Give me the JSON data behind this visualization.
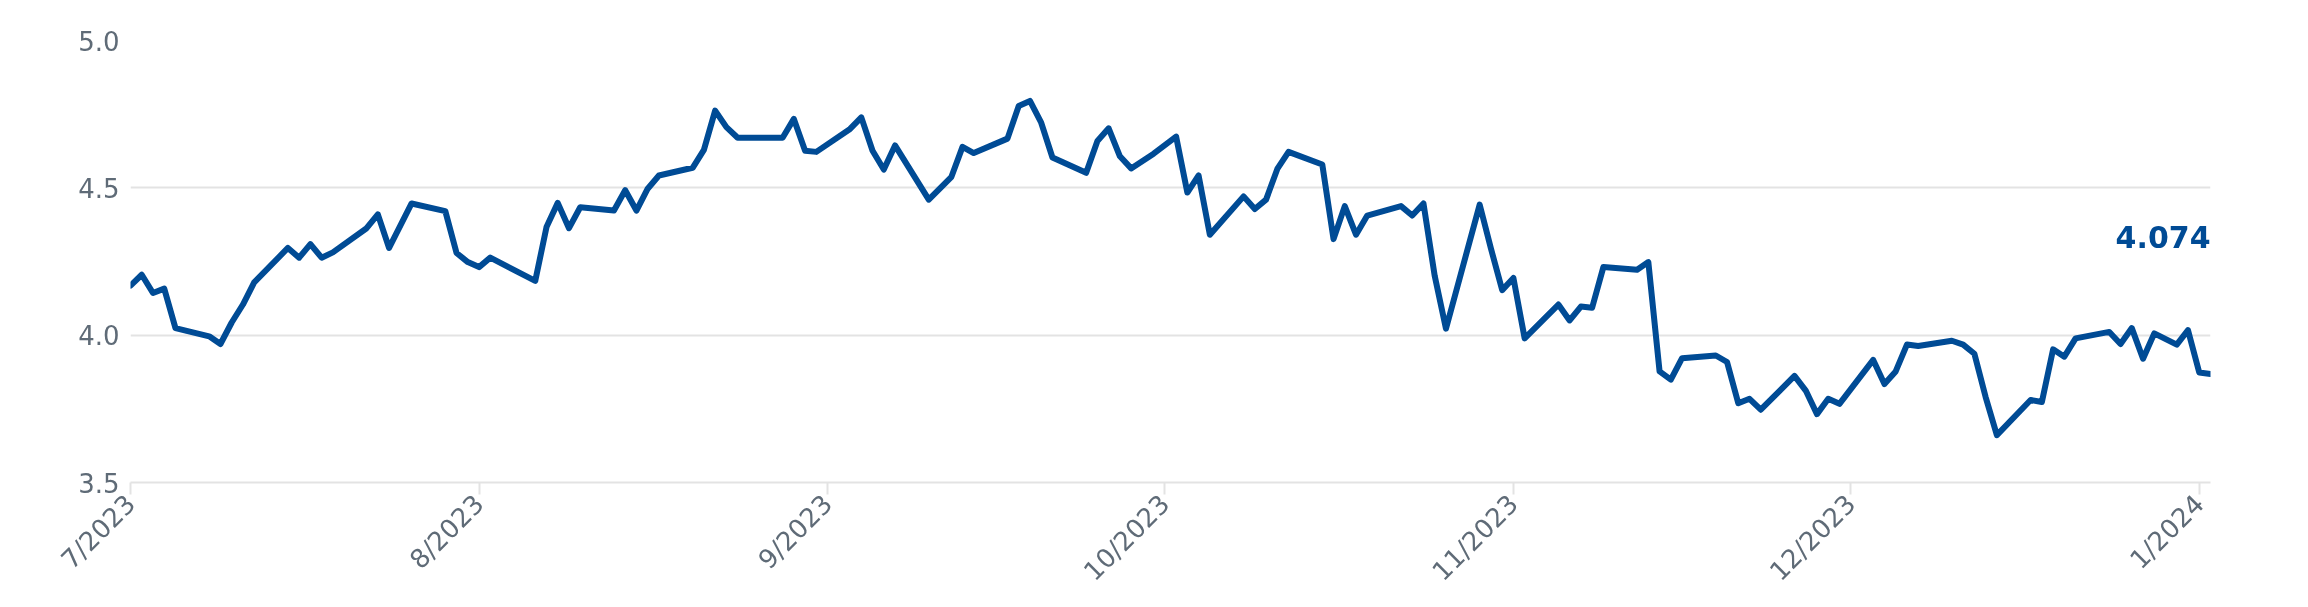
{
  "chart_data": {
    "type": "line",
    "x": [
      "2023-07-01",
      "2023-07-02",
      "2023-07-03",
      "2023-07-04",
      "2023-07-05",
      "2023-07-08",
      "2023-07-09",
      "2023-07-10",
      "2023-07-11",
      "2023-07-12",
      "2023-07-15",
      "2023-07-16",
      "2023-07-17",
      "2023-07-18",
      "2023-07-19",
      "2023-07-22",
      "2023-07-23",
      "2023-07-24",
      "2023-07-26",
      "2023-07-29",
      "2023-07-30",
      "2023-07-31",
      "2023-08-01",
      "2023-08-02",
      "2023-08-06",
      "2023-08-07",
      "2023-08-08",
      "2023-08-09",
      "2023-08-10",
      "2023-08-13",
      "2023-08-14",
      "2023-08-15",
      "2023-08-16",
      "2023-08-17",
      "2023-08-20",
      "2023-08-21",
      "2023-08-22",
      "2023-08-23",
      "2023-08-24",
      "2023-08-28",
      "2023-08-29",
      "2023-08-30",
      "2023-08-31",
      "2023-09-03",
      "2023-09-04",
      "2023-09-05",
      "2023-09-06",
      "2023-09-07",
      "2023-09-10",
      "2023-09-12",
      "2023-09-13",
      "2023-09-14",
      "2023-09-17",
      "2023-09-18",
      "2023-09-19",
      "2023-09-20",
      "2023-09-21",
      "2023-09-24",
      "2023-09-25",
      "2023-09-26",
      "2023-09-27",
      "2023-09-28",
      "2023-09-30",
      "2023-10-02",
      "2023-10-03",
      "2023-10-04",
      "2023-10-05",
      "2023-10-08",
      "2023-10-09",
      "2023-10-10",
      "2023-10-11",
      "2023-10-12",
      "2023-10-15",
      "2023-10-16",
      "2023-10-17",
      "2023-10-18",
      "2023-10-19",
      "2023-10-22",
      "2023-10-23",
      "2023-10-24",
      "2023-10-25",
      "2023-10-26",
      "2023-10-29",
      "2023-10-30",
      "2023-10-31",
      "2023-11-01",
      "2023-11-02",
      "2023-11-05",
      "2023-11-06",
      "2023-11-07",
      "2023-11-08",
      "2023-11-09",
      "2023-11-12",
      "2023-11-13",
      "2023-11-14",
      "2023-11-15",
      "2023-11-16",
      "2023-11-19",
      "2023-11-20",
      "2023-11-21",
      "2023-11-22",
      "2023-11-23",
      "2023-11-26",
      "2023-11-27",
      "2023-11-28",
      "2023-11-29",
      "2023-11-30",
      "2023-12-03",
      "2023-12-04",
      "2023-12-05",
      "2023-12-06",
      "2023-12-07",
      "2023-12-10",
      "2023-12-11",
      "2023-12-12",
      "2023-12-13",
      "2023-12-14",
      "2023-12-17",
      "2023-12-18",
      "2023-12-19",
      "2023-12-20",
      "2023-12-21",
      "2023-12-24",
      "2023-12-25",
      "2023-12-26",
      "2023-12-27",
      "2023-12-28",
      "2023-12-30",
      "2023-12-31",
      "2024-01-01",
      "2024-01-02"
    ],
    "series": [
      {
        "color": "#004b95",
        "values": [
          4.168,
          4.205,
          4.143,
          4.158,
          4.024,
          3.996,
          3.97,
          4.043,
          4.104,
          4.179,
          4.296,
          4.263,
          4.309,
          4.263,
          4.281,
          4.363,
          4.41,
          4.296,
          4.447,
          4.421,
          4.279,
          4.248,
          4.231,
          4.263,
          4.184,
          4.367,
          4.449,
          4.363,
          4.434,
          4.423,
          4.492,
          4.423,
          4.497,
          4.542,
          4.568,
          4.629,
          4.762,
          4.706,
          4.67,
          4.67,
          4.734,
          4.626,
          4.622,
          4.7,
          4.739,
          4.626,
          4.562,
          4.644,
          4.46,
          4.536,
          4.639,
          4.618,
          4.667,
          4.778,
          4.795,
          4.721,
          4.603,
          4.551,
          4.659,
          4.702,
          4.607,
          4.566,
          4.616,
          4.674,
          4.484,
          4.542,
          4.341,
          4.471,
          4.428,
          4.46,
          4.564,
          4.622,
          4.579,
          4.326,
          4.438,
          4.341,
          4.406,
          4.438,
          4.406,
          4.447,
          4.201,
          4.022,
          4.443,
          4.294,
          4.153,
          4.194,
          3.989,
          4.104,
          4.05,
          4.097,
          4.093,
          4.231,
          4.222,
          4.248,
          3.877,
          3.849,
          3.922,
          3.931,
          3.909,
          3.769,
          3.784,
          3.747,
          3.862,
          3.812,
          3.732,
          3.784,
          3.767,
          3.916,
          3.834,
          3.877,
          3.968,
          3.963,
          3.981,
          3.968,
          3.937,
          3.79,
          3.661,
          3.78,
          3.773,
          3.952,
          3.927,
          3.989,
          4.011,
          3.97,
          4.024,
          3.92,
          4.006,
          3.968,
          4.017,
          3.873,
          3.868
        ]
      }
    ],
    "xlim": [
      "2023-07-01",
      "2024-01-02"
    ],
    "xticks": [
      {
        "value": "2023-07-01",
        "label": "7/2023"
      },
      {
        "value": "2023-08-01",
        "label": "8/2023"
      },
      {
        "value": "2023-09-01",
        "label": "9/2023"
      },
      {
        "value": "2023-10-01",
        "label": "10/2023"
      },
      {
        "value": "2023-11-01",
        "label": "11/2023"
      },
      {
        "value": "2023-12-01",
        "label": "12/2023"
      },
      {
        "value": "2024-01-01",
        "label": "1/2024"
      }
    ],
    "ylim": [
      3.5,
      5.0
    ],
    "yticks": [
      {
        "value": 3.5,
        "label": "3.5"
      },
      {
        "value": 4.0,
        "label": "4.0"
      },
      {
        "value": 4.5,
        "label": "4.5"
      },
      {
        "value": 5.0,
        "label": "5.0"
      }
    ],
    "grid": "y",
    "annotations": [
      "4.074"
    ],
    "line_style": "solid",
    "marker": "none"
  }
}
